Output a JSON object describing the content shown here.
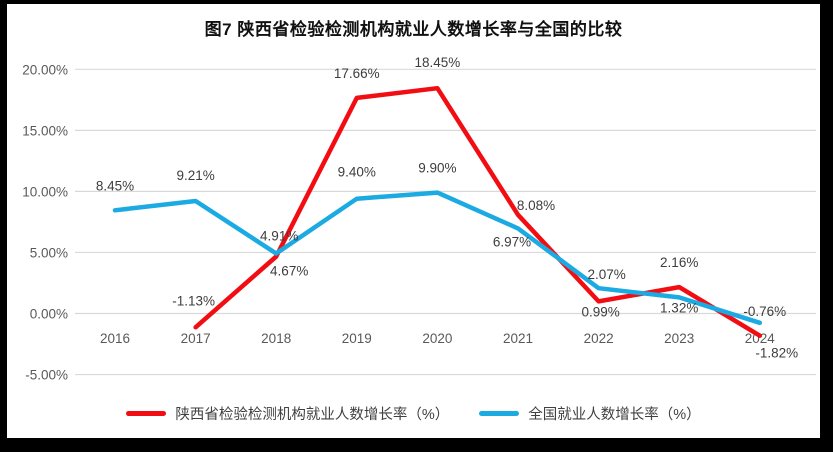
{
  "page": {
    "title": "图7 陕西省检验检测机构就业人数增长率与全国的比较"
  },
  "chart_data": {
    "type": "line",
    "title": "图7 陕西省检验检测机构就业人数增长率与全国的比较",
    "categories": [
      "2016",
      "2017",
      "2018",
      "2019",
      "2020",
      "2021",
      "2022",
      "2023",
      "2024"
    ],
    "y_axis": {
      "ticks": [
        "20.00%",
        "15.00%",
        "10.00%",
        "5.00%",
        "0.00%",
        "-5.00%"
      ],
      "tick_values": [
        20,
        15,
        10,
        5,
        0,
        -5
      ],
      "min": -5,
      "max": 20,
      "grid": true
    },
    "grid_color": "#d9d9d9",
    "legend_position": "bottom",
    "series": [
      {
        "name": "陕西省检验检测机构就业人数增长率（%）",
        "color": "#f20d13",
        "values": [
          null,
          -1.13,
          4.67,
          17.66,
          18.45,
          8.08,
          0.99,
          2.16,
          -1.82
        ],
        "data_labels": [
          "",
          "-1.13%",
          "4.67%",
          "17.66%",
          "18.45%",
          "8.08%",
          "0.99%",
          "2.16%",
          "-1.82%"
        ],
        "label_offsets": [
          [
            0,
            0
          ],
          [
            -2,
            -22
          ],
          [
            13,
            19
          ],
          [
            0,
            -20
          ],
          [
            0,
            -21
          ],
          [
            18,
            -5
          ],
          [
            2,
            15
          ],
          [
            0,
            -20
          ],
          [
            17,
            22
          ]
        ]
      },
      {
        "name": "全国就业人数增长率（%）",
        "color": "#1babe2",
        "values": [
          8.45,
          9.21,
          4.91,
          9.4,
          9.9,
          6.97,
          2.07,
          1.32,
          -0.76
        ],
        "data_labels": [
          "8.45%",
          "9.21%",
          "4.91%",
          "9.40%",
          "9.90%",
          "6.97%",
          "2.07%",
          "1.32%",
          "-0.76%"
        ],
        "label_offsets": [
          [
            0,
            -20
          ],
          [
            0,
            -21
          ],
          [
            3,
            -13
          ],
          [
            0,
            -22
          ],
          [
            0,
            -20
          ],
          [
            -6,
            18
          ],
          [
            8,
            -9
          ],
          [
            0,
            15
          ],
          [
            5,
            -7
          ]
        ]
      }
    ]
  }
}
